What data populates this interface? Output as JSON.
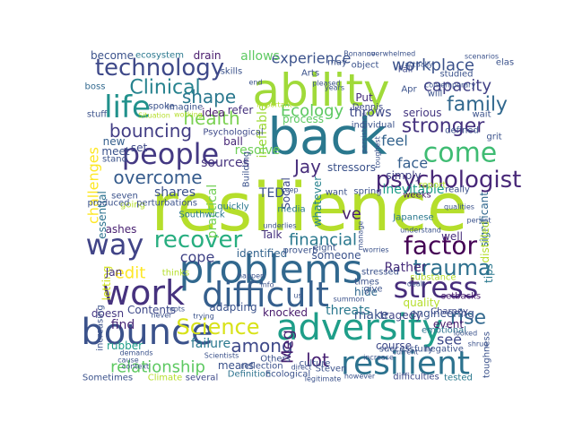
{
  "words": [
    {
      "text": "resilience",
      "color": "#b5de2b"
    },
    {
      "text": "back",
      "color": "#2a788e"
    },
    {
      "text": "ability",
      "color": "#a0da39"
    },
    {
      "text": "problems",
      "color": "#31688e"
    },
    {
      "text": "adversity",
      "color": "#1f9e89"
    },
    {
      "text": "bounce",
      "color": "#3b528b"
    },
    {
      "text": "work",
      "color": "#46327e"
    },
    {
      "text": "difficult",
      "color": "#355f8d"
    },
    {
      "text": "resilient",
      "color": "#2c728e"
    },
    {
      "text": "people",
      "color": "#443983"
    },
    {
      "text": "life",
      "color": "#21918c"
    },
    {
      "text": "come",
      "color": "#3fbc73"
    },
    {
      "text": "technology",
      "color": "#3e4989"
    },
    {
      "text": "psychologist",
      "color": "#482878"
    },
    {
      "text": "stress",
      "color": "#472d7b"
    },
    {
      "text": "way",
      "color": "#414487"
    },
    {
      "text": "recover",
      "color": "#28ae80"
    },
    {
      "text": "factor",
      "color": "#440154"
    },
    {
      "text": "Science",
      "color": "#d8e219"
    },
    {
      "text": "trauma",
      "color": "#2d708e"
    },
    {
      "text": "Clinical",
      "color": "#26828e"
    },
    {
      "text": "workplace",
      "color": "#3b528b"
    },
    {
      "text": "family",
      "color": "#31688e"
    },
    {
      "text": "stronger",
      "color": "#46337f"
    },
    {
      "text": "overcome",
      "color": "#365c8d"
    },
    {
      "text": "bouncing",
      "color": "#433e85"
    },
    {
      "text": "health",
      "color": "#7ad151"
    },
    {
      "text": "shape",
      "color": "#2a788e"
    },
    {
      "text": "capacity",
      "color": "#424186"
    },
    {
      "text": "challenges",
      "color": "#fde725"
    },
    {
      "text": "among",
      "color": "#3e4989"
    },
    {
      "text": "relationship",
      "color": "#5ec962"
    },
    {
      "text": "Meg",
      "color": "#481f70"
    },
    {
      "text": "financial",
      "color": "#2a788e"
    },
    {
      "text": "cope",
      "color": "#414487"
    },
    {
      "text": "edit",
      "color": "#fde725"
    },
    {
      "text": "rise",
      "color": "#31688e"
    },
    {
      "text": "Ecology",
      "color": "#5ec962"
    },
    {
      "text": "experience",
      "color": "#3b528b"
    },
    {
      "text": "Jay",
      "color": "#472d7b"
    },
    {
      "text": "feel",
      "color": "#33638d"
    },
    {
      "text": "face",
      "color": "#355f8d"
    },
    {
      "text": "lot",
      "color": "#482173"
    },
    {
      "text": "see",
      "color": "#3e4989"
    },
    {
      "text": "inevitable",
      "color": "#1f9e89"
    },
    {
      "text": "allows",
      "color": "#5ec962"
    },
    {
      "text": "drain",
      "color": "#481a6c"
    },
    {
      "text": "idea",
      "color": "#48186a"
    },
    {
      "text": "refer",
      "color": "#46327e"
    },
    {
      "text": "throws",
      "color": "#3e4989"
    },
    {
      "text": "serious",
      "color": "#453781"
    },
    {
      "text": "significant",
      "color": "#31688e"
    },
    {
      "text": "tips",
      "color": "#2a788e"
    },
    {
      "text": "quality",
      "color": "#b5de2b"
    },
    {
      "text": "tragedy",
      "color": "#414487"
    },
    {
      "text": "well",
      "color": "#472d7b"
    },
    {
      "text": "make",
      "color": "#3b528b"
    },
    {
      "text": "Talk",
      "color": "#46327e"
    },
    {
      "text": "ve",
      "color": "#481f70"
    },
    {
      "text": "practical",
      "color": "#73d056"
    },
    {
      "text": "ineffable",
      "color": "#a0da39"
    },
    {
      "text": "resolve",
      "color": "#6ece58"
    },
    {
      "text": "sources",
      "color": "#46327e"
    },
    {
      "text": "shares",
      "color": "#3b528b"
    },
    {
      "text": "failure",
      "color": "#2a788e"
    },
    {
      "text": "adapting",
      "color": "#3b528b"
    },
    {
      "text": "knocked",
      "color": "#481a6c"
    },
    {
      "text": "Contents",
      "color": "#3e4989"
    },
    {
      "text": "find",
      "color": "#482878"
    },
    {
      "text": "rubber",
      "color": "#1f9e89"
    },
    {
      "text": "means",
      "color": "#3b528b"
    },
    {
      "text": "letting",
      "color": "#d2e21b"
    },
    {
      "text": "doesn",
      "color": "#453781"
    },
    {
      "text": "identified",
      "color": "#33638d"
    },
    {
      "text": "threats",
      "color": "#2a788e"
    },
    {
      "text": "someone",
      "color": "#3b528b"
    },
    {
      "text": "Rather",
      "color": "#472d7b"
    },
    {
      "text": "course",
      "color": "#3e4989"
    },
    {
      "text": "event",
      "color": "#481a6c"
    },
    {
      "text": "engineering",
      "color": "#3b528b"
    },
    {
      "text": "hide",
      "color": "#31688e"
    },
    {
      "text": "set",
      "color": "#3e4989"
    },
    {
      "text": "new",
      "color": "#355f8d"
    },
    {
      "text": "meet",
      "color": "#3b528b"
    },
    {
      "text": "essential",
      "color": "#2c728e"
    },
    {
      "text": "ashes",
      "color": "#481f70"
    },
    {
      "text": "Jan",
      "color": "#46327e"
    },
    {
      "text": "become",
      "color": "#3b528b"
    },
    {
      "text": "ecosystem",
      "color": "#2a788e"
    },
    {
      "text": "boss",
      "color": "#31688e"
    },
    {
      "text": "Psychological",
      "color": "#3e4989"
    },
    {
      "text": "ball",
      "color": "#482878"
    },
    {
      "text": "process",
      "color": "#5ec962"
    },
    {
      "text": "TED",
      "color": "#3b528b"
    },
    {
      "text": "Social",
      "color": "#3e4989"
    },
    {
      "text": "whatever",
      "color": "#26828e"
    },
    {
      "text": "media",
      "color": "#2a788e"
    },
    {
      "text": "stressors",
      "color": "#3b528b"
    },
    {
      "text": "simply",
      "color": "#414487"
    },
    {
      "text": "Put",
      "color": "#472d7b"
    },
    {
      "text": "want",
      "color": "#3b528b"
    },
    {
      "text": "Japanese",
      "color": "#2a788e"
    },
    {
      "text": "distilled",
      "color": "#b5de2b"
    },
    {
      "text": "setbacks",
      "color": "#481a6c"
    },
    {
      "text": "Charney",
      "color": "#3e4989"
    },
    {
      "text": "emotional",
      "color": "#2c728e"
    },
    {
      "text": "negative",
      "color": "#3b528b"
    },
    {
      "text": "toughness",
      "color": "#3b528b"
    },
    {
      "text": "tested",
      "color": "#2a788e"
    },
    {
      "text": "difficulties",
      "color": "#3e4989"
    },
    {
      "text": "successfully",
      "color": "#3b528b"
    },
    {
      "text": "Definition",
      "color": "#2c728e"
    },
    {
      "text": "Ecological",
      "color": "#3b528b"
    },
    {
      "text": "several",
      "color": "#3e4989"
    },
    {
      "text": "Climate",
      "color": "#b5de2b"
    },
    {
      "text": "Sometimes",
      "color": "#3b528b"
    },
    {
      "text": "Southwick",
      "color": "#2a788e"
    },
    {
      "text": "eight",
      "color": "#3b528b"
    },
    {
      "text": "substance",
      "color": "#b5de2b"
    },
    {
      "text": "report",
      "color": "#b5de2b"
    },
    {
      "text": "really",
      "color": "#3b528b"
    },
    {
      "text": "weeks",
      "color": "#481a6c"
    },
    {
      "text": "spring",
      "color": "#3b528b"
    },
    {
      "text": "individual",
      "color": "#3b528b"
    },
    {
      "text": "Dennis",
      "color": "#3e4989"
    },
    {
      "text": "object",
      "color": "#3b528b"
    },
    {
      "text": "Apr",
      "color": "#3b528b"
    },
    {
      "text": "studied",
      "color": "#3b528b"
    },
    {
      "text": "Fall",
      "color": "#3e4989"
    },
    {
      "text": "will",
      "color": "#3b528b"
    },
    {
      "text": "Arts",
      "color": "#3b528b"
    },
    {
      "text": "may",
      "color": "#3b528b"
    },
    {
      "text": "skills",
      "color": "#3b528b"
    },
    {
      "text": "stuff",
      "color": "#3b528b"
    },
    {
      "text": "spoke",
      "color": "#3b528b"
    },
    {
      "text": "Imagine",
      "color": "#3b528b"
    },
    {
      "text": "stand",
      "color": "#3b528b"
    },
    {
      "text": "seven",
      "color": "#3b528b"
    },
    {
      "text": "going",
      "color": "#b5de2b"
    },
    {
      "text": "produced",
      "color": "#3b528b"
    },
    {
      "text": "perturbations",
      "color": "#3b528b"
    },
    {
      "text": "quickly",
      "color": "#2a788e"
    },
    {
      "text": "Building",
      "color": "#3b528b"
    },
    {
      "text": "proverb",
      "color": "#3b528b"
    },
    {
      "text": "stressed",
      "color": "#3b528b"
    },
    {
      "text": "times",
      "color": "#3b528b"
    },
    {
      "text": "thinks",
      "color": "#b5de2b"
    },
    {
      "text": "increasing",
      "color": "#3b528b"
    },
    {
      "text": "Others",
      "color": "#3b528b"
    },
    {
      "text": "reflection",
      "color": "#3b528b"
    },
    {
      "text": "Steven",
      "color": "#3b528b"
    },
    {
      "text": "give",
      "color": "#3b528b"
    },
    {
      "text": "culture",
      "color": "#3b528b"
    },
    {
      "text": "grit",
      "color": "#3b528b"
    },
    {
      "text": "elas",
      "color": "#3b528b"
    },
    {
      "text": "overwhelmed",
      "color": "#3b528b"
    },
    {
      "text": "scenarios",
      "color": "#3b528b"
    },
    {
      "text": "wait",
      "color": "#3b528b"
    },
    {
      "text": "defined",
      "color": "#3b528b"
    },
    {
      "text": "toughest",
      "color": "#3b528b"
    },
    {
      "text": "persistence",
      "color": "#3b528b"
    },
    {
      "text": "contemporary",
      "color": "#3b528b"
    },
    {
      "text": "qualities",
      "color": "#3b528b"
    },
    {
      "text": "persist",
      "color": "#3b528b"
    },
    {
      "text": "looked",
      "color": "#3b528b"
    },
    {
      "text": "current",
      "color": "#3b528b"
    },
    {
      "text": "increase",
      "color": "#3b528b"
    },
    {
      "text": "manage",
      "color": "#3b528b"
    },
    {
      "text": "underlies",
      "color": "#3b528b"
    },
    {
      "text": "worries",
      "color": "#3b528b"
    },
    {
      "text": "summon",
      "color": "#3b528b"
    },
    {
      "text": "dealt",
      "color": "#3b528b"
    },
    {
      "text": "understand",
      "color": "#3b528b"
    },
    {
      "text": "happen",
      "color": "#3b528b"
    },
    {
      "text": "trying",
      "color": "#3b528b"
    },
    {
      "text": "roots",
      "color": "#3b528b"
    },
    {
      "text": "never",
      "color": "#3b528b"
    },
    {
      "text": "cause",
      "color": "#3b528b"
    },
    {
      "text": "context",
      "color": "#3b528b"
    },
    {
      "text": "demands",
      "color": "#3b528b"
    },
    {
      "text": "Scientists",
      "color": "#3b528b"
    },
    {
      "text": "however",
      "color": "#3b528b"
    },
    {
      "text": "legitimate",
      "color": "#3b528b"
    },
    {
      "text": "direct",
      "color": "#3b528b"
    },
    {
      "text": "info",
      "color": "#3b528b"
    },
    {
      "text": "keep",
      "color": "#3b528b"
    },
    {
      "text": "us",
      "color": "#3b528b"
    },
    {
      "text": "years",
      "color": "#3b528b"
    },
    {
      "text": "end",
      "color": "#3b528b"
    },
    {
      "text": "Situation",
      "color": "#b5de2b"
    },
    {
      "text": "working",
      "color": "#b5de2b"
    },
    {
      "text": "important",
      "color": "#b5de2b"
    },
    {
      "text": "pleased",
      "color": "#3b528b"
    },
    {
      "text": "Bonanno",
      "color": "#3b528b"
    },
    {
      "text": "actually",
      "color": "#3b528b"
    },
    {
      "text": "shrug",
      "color": "#3b528b"
    }
  ]
}
